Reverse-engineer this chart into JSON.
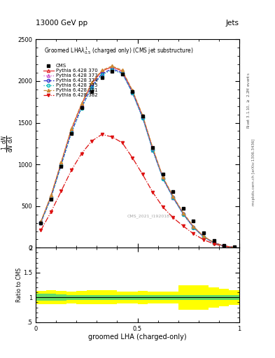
{
  "title_top": "13000 GeV pp",
  "title_right": "Jets",
  "plot_title": "Groomed LHA$\\lambda^1_{0.5}$ (charged only) (CMS jet substructure)",
  "xlabel": "groomed LHA (charged-only)",
  "ylabel_main_top": "$\\frac{1}{\\mathrm{d}N}\\frac{\\mathrm{d}N}{\\mathrm{d}\\lambda}$",
  "ylabel_ratio": "Ratio to CMS",
  "right_label_top": "Rivet 3.1.10, $\\geq$ 2.2M events",
  "right_label_bottom": "mcplots.cern.ch [arXiv:1306.3436]",
  "watermark": "CMS_2021_I1920187",
  "x_data": [
    0.025,
    0.075,
    0.125,
    0.175,
    0.225,
    0.275,
    0.325,
    0.375,
    0.425,
    0.475,
    0.525,
    0.575,
    0.625,
    0.675,
    0.725,
    0.775,
    0.825,
    0.875,
    0.925,
    0.975
  ],
  "cms_data": [
    300,
    580,
    980,
    1370,
    1680,
    1870,
    2040,
    2120,
    2080,
    1870,
    1580,
    1200,
    880,
    670,
    470,
    320,
    180,
    90,
    28,
    8
  ],
  "pythia_370": [
    310,
    620,
    1020,
    1420,
    1720,
    1970,
    2120,
    2170,
    2120,
    1880,
    1580,
    1190,
    840,
    610,
    410,
    250,
    135,
    62,
    22,
    5
  ],
  "pythia_373": [
    300,
    600,
    990,
    1380,
    1680,
    1930,
    2080,
    2140,
    2095,
    1860,
    1560,
    1170,
    830,
    600,
    403,
    243,
    130,
    59,
    21,
    5
  ],
  "pythia_374": [
    302,
    605,
    995,
    1385,
    1685,
    1938,
    2088,
    2148,
    2100,
    1865,
    1565,
    1175,
    833,
    603,
    406,
    246,
    132,
    60,
    21,
    5
  ],
  "pythia_375": [
    298,
    595,
    985,
    1375,
    1675,
    1925,
    2075,
    2135,
    2088,
    1855,
    1555,
    1165,
    825,
    595,
    399,
    240,
    128,
    57,
    20,
    5
  ],
  "pythia_381": [
    315,
    630,
    1030,
    1430,
    1730,
    1980,
    2130,
    2180,
    2130,
    1890,
    1590,
    1200,
    848,
    618,
    418,
    257,
    138,
    64,
    23,
    5
  ],
  "pythia_382": [
    210,
    430,
    680,
    930,
    1130,
    1280,
    1360,
    1330,
    1260,
    1080,
    880,
    665,
    488,
    360,
    260,
    168,
    96,
    47,
    17,
    4
  ],
  "ylim_main": [
    0,
    2500
  ],
  "ylim_ratio": [
    0.5,
    2.0
  ],
  "yticks_main": [
    0,
    500,
    1000,
    1500,
    2000,
    2500
  ],
  "ytick_labels_main": [
    "0",
    "500",
    "1000",
    "1500",
    "2000",
    "2500"
  ],
  "yticks_ratio": [
    0.5,
    1.0,
    1.5,
    2.0
  ],
  "ytick_labels_ratio": [
    ".5",
    "1",
    "1.5",
    "2"
  ],
  "colors": {
    "370": "#e63333",
    "373": "#cc55cc",
    "374": "#3333cc",
    "375": "#00bbbb",
    "381": "#cc8833",
    "382": "#dd1111"
  },
  "ratio_xedges": [
    0.0,
    0.05,
    0.1,
    0.15,
    0.2,
    0.25,
    0.3,
    0.35,
    0.4,
    0.45,
    0.5,
    0.55,
    0.6,
    0.65,
    0.7,
    0.75,
    0.8,
    0.85,
    0.9,
    0.95,
    1.0
  ],
  "ratio_green_lo": [
    0.93,
    0.93,
    0.94,
    0.95,
    0.95,
    0.95,
    0.95,
    0.95,
    0.95,
    0.95,
    0.95,
    0.95,
    0.95,
    0.95,
    0.95,
    0.95,
    0.95,
    0.95,
    0.95,
    0.95
  ],
  "ratio_green_hi": [
    1.07,
    1.07,
    1.06,
    1.05,
    1.05,
    1.05,
    1.05,
    1.05,
    1.05,
    1.05,
    1.05,
    1.05,
    1.05,
    1.05,
    1.05,
    1.05,
    1.05,
    1.05,
    1.05,
    1.05
  ],
  "ratio_yellow_lo": [
    0.87,
    0.86,
    0.87,
    0.88,
    0.87,
    0.86,
    0.86,
    0.86,
    0.88,
    0.88,
    0.87,
    0.88,
    0.88,
    0.88,
    0.75,
    0.75,
    0.75,
    0.8,
    0.82,
    0.85
  ],
  "ratio_yellow_hi": [
    1.13,
    1.14,
    1.13,
    1.12,
    1.13,
    1.14,
    1.14,
    1.14,
    1.12,
    1.12,
    1.13,
    1.12,
    1.12,
    1.12,
    1.25,
    1.25,
    1.25,
    1.2,
    1.18,
    1.15
  ]
}
